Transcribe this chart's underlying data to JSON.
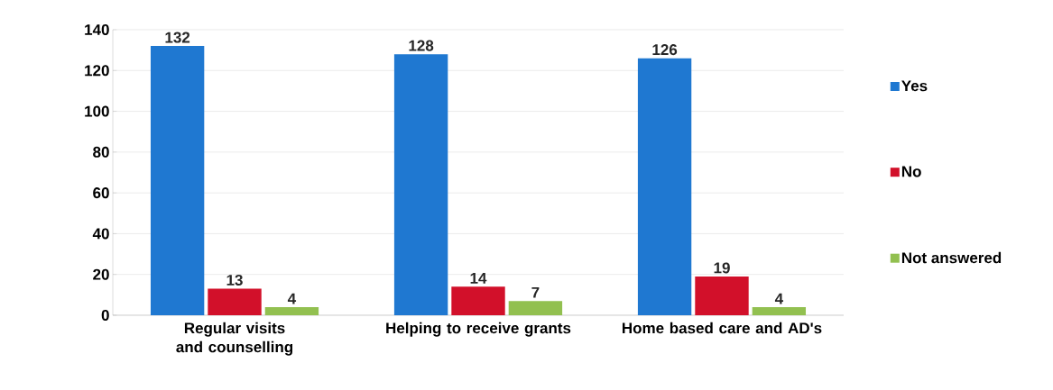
{
  "chart_data": {
    "type": "bar",
    "categories": [
      "Regular visits and counselling",
      "Helping to receive grants",
      "Home based care and AD's"
    ],
    "series": [
      {
        "name": "Yes",
        "color": "#1f78d1",
        "values": [
          132,
          128,
          126
        ]
      },
      {
        "name": "No",
        "color": "#d2102a",
        "values": [
          13,
          14,
          19
        ]
      },
      {
        "name": "Not answered",
        "color": "#92c050",
        "values": [
          4,
          7,
          4
        ]
      }
    ],
    "ylim": [
      0,
      140
    ],
    "yticks": [
      0,
      20,
      40,
      60,
      80,
      100,
      120,
      140
    ],
    "grid": "y",
    "legend": "right",
    "data_labels": true
  }
}
